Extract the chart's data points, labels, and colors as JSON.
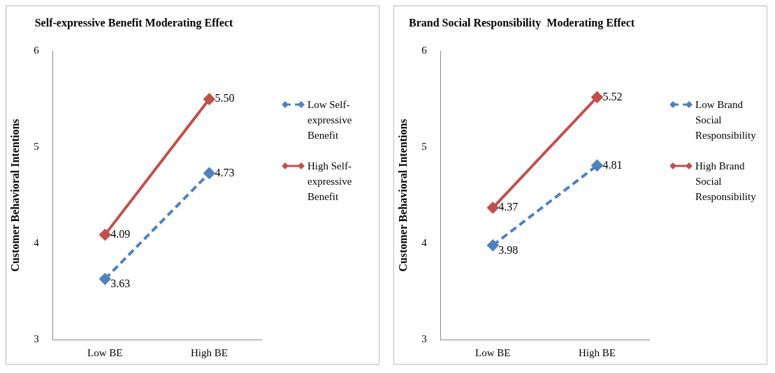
{
  "chart_data": [
    {
      "type": "line",
      "title": "Self-expressive Benefit Moderating Effect",
      "ylabel": "Customer Behavioral Intentions",
      "categories": [
        "Low BE",
        "High BE"
      ],
      "ylim": [
        3,
        6
      ],
      "yticks": [
        3,
        4,
        5,
        6
      ],
      "grid": false,
      "legend": "right",
      "marker": "diamond",
      "series": [
        {
          "name": "Low Self-expressive Benefit",
          "color": "#4f81bd",
          "values": [
            3.63,
            4.73
          ],
          "value_labels": [
            "3.63",
            "4.73"
          ],
          "line_style": "dashed"
        },
        {
          "name": "High Self-expressive Benefit",
          "color": "#c0504d",
          "values": [
            4.09,
            5.5
          ],
          "value_labels": [
            "4.09",
            "5.50"
          ],
          "line_style": "solid"
        }
      ]
    },
    {
      "type": "line",
      "title": "Brand Social Responsibility  Moderating Effect",
      "ylabel": "Customer Behavioral Intentions",
      "categories": [
        "Low BE",
        "High BE"
      ],
      "ylim": [
        3,
        6
      ],
      "yticks": [
        3,
        4,
        5,
        6
      ],
      "grid": false,
      "legend": "right",
      "marker": "diamond",
      "series": [
        {
          "name": "Low Brand Social Responsibility",
          "color": "#4f81bd",
          "values": [
            3.98,
            4.81
          ],
          "value_labels": [
            "3.98",
            "4.81"
          ],
          "line_style": "dashed"
        },
        {
          "name": "High Brand Social Responsibility",
          "color": "#c0504d",
          "values": [
            4.37,
            5.52
          ],
          "value_labels": [
            "4.37",
            "5.52"
          ],
          "line_style": "solid"
        }
      ]
    }
  ]
}
